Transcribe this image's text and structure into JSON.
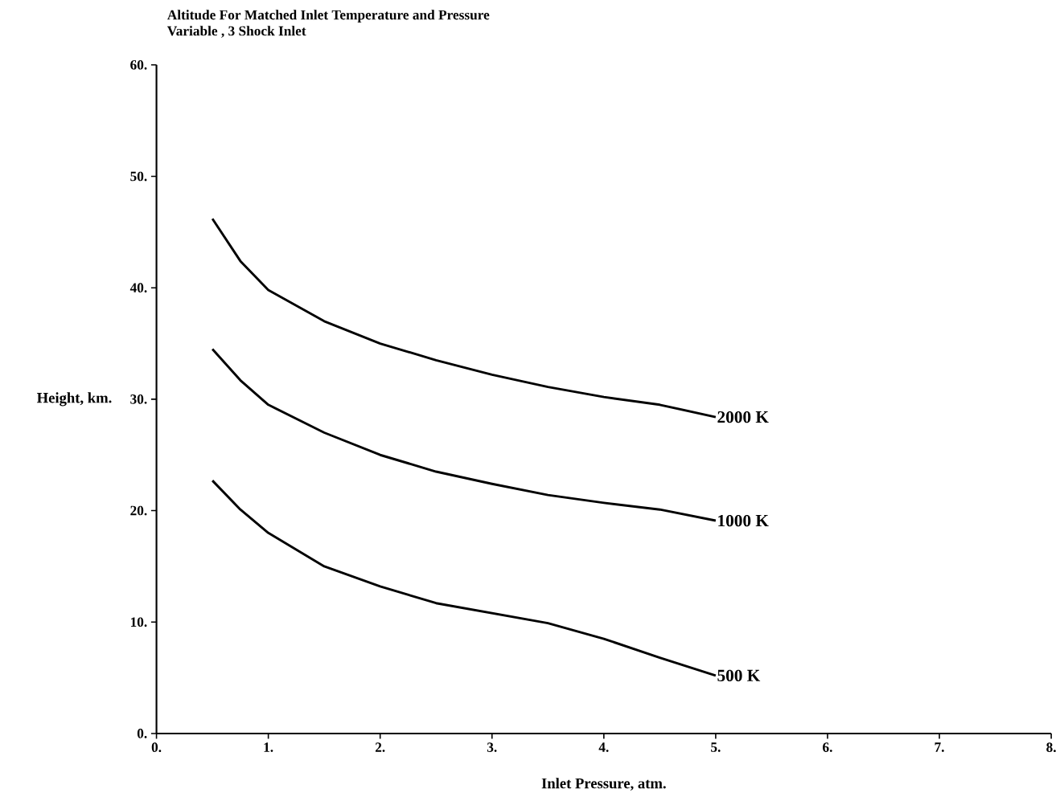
{
  "chart_data": {
    "type": "line",
    "title": "Altitude For Matched Inlet Temperature and Pressure",
    "subtitle": "Variable , 3 Shock Inlet",
    "xlabel": "Inlet Pressure, atm.",
    "ylabel": "Height, km.",
    "xlim": [
      0,
      8
    ],
    "ylim": [
      0,
      60
    ],
    "xticks": [
      {
        "value": 0,
        "label": "0."
      },
      {
        "value": 1,
        "label": "1."
      },
      {
        "value": 2,
        "label": "2."
      },
      {
        "value": 3,
        "label": "3."
      },
      {
        "value": 4,
        "label": "4."
      },
      {
        "value": 5,
        "label": "5."
      },
      {
        "value": 6,
        "label": "6."
      },
      {
        "value": 7,
        "label": "7."
      },
      {
        "value": 8,
        "label": "8."
      }
    ],
    "yticks": [
      {
        "value": 0,
        "label": "0."
      },
      {
        "value": 10,
        "label": "10."
      },
      {
        "value": 20,
        "label": "20."
      },
      {
        "value": 30,
        "label": "30."
      },
      {
        "value": 40,
        "label": "40."
      },
      {
        "value": 50,
        "label": "50."
      },
      {
        "value": 60,
        "label": "60."
      }
    ],
    "x": [
      0.5,
      0.75,
      1,
      1.5,
      2,
      2.5,
      3,
      3.5,
      4,
      4.5,
      5
    ],
    "series": [
      {
        "name": "2000 K",
        "color": "#000000",
        "values": [
          46.2,
          42.4,
          39.8,
          37.0,
          35.0,
          33.5,
          32.2,
          31.1,
          30.2,
          29.5,
          28.4
        ]
      },
      {
        "name": "1000 K",
        "color": "#000000",
        "values": [
          34.5,
          31.7,
          29.5,
          27.0,
          25.0,
          23.5,
          22.4,
          21.4,
          20.7,
          20.1,
          19.1
        ]
      },
      {
        "name": "500 K",
        "color": "#000000",
        "values": [
          22.7,
          20.1,
          18.0,
          15.0,
          13.2,
          11.7,
          10.8,
          9.9,
          8.5,
          6.8,
          5.2
        ]
      }
    ],
    "grid": false,
    "marker": "none",
    "line_style": "solid"
  }
}
